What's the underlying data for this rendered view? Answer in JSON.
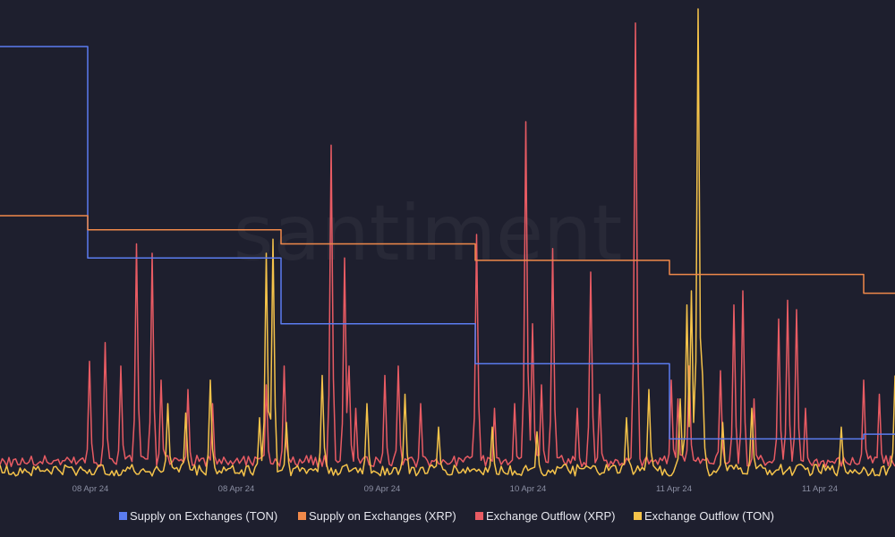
{
  "chart_data": {
    "type": "line",
    "watermark": "santiment",
    "x_ticks": [
      "08 Apr 24",
      "08 Apr 24",
      "09 Apr 24",
      "10 Apr 24",
      "11 Apr 24",
      "11 Apr 24"
    ],
    "series": [
      {
        "name": "Supply on Exchanges (TON)",
        "color": "#5b7cf0",
        "style": "step",
        "x": [
          0,
          0.098,
          0.314,
          0.531,
          0.748,
          0.965,
          1.0
        ],
        "values": [
          92,
          47,
          33,
          24.5,
          8.5,
          9.5,
          9.5
        ]
      },
      {
        "name": "Supply on Exchanges (XRP)",
        "color": "#f0894a",
        "style": "step",
        "x": [
          0,
          0.098,
          0.314,
          0.531,
          0.748,
          0.965,
          1.0
        ],
        "values": [
          56,
          53,
          50,
          46.5,
          43.5,
          39.5,
          39.5
        ]
      },
      {
        "name": "Exchange Outflow (XRP)",
        "color": "#e85b63",
        "style": "spiky",
        "baseline": 2.5,
        "noise": 2.5,
        "spikes": [
          [
            0.099,
            25
          ],
          [
            0.117,
            29
          ],
          [
            0.135,
            24
          ],
          [
            0.153,
            50
          ],
          [
            0.171,
            48
          ],
          [
            0.18,
            21
          ],
          [
            0.209,
            19
          ],
          [
            0.238,
            16
          ],
          [
            0.298,
            20
          ],
          [
            0.318,
            24
          ],
          [
            0.37,
            71
          ],
          [
            0.384,
            47
          ],
          [
            0.39,
            24
          ],
          [
            0.397,
            15
          ],
          [
            0.43,
            22
          ],
          [
            0.446,
            24
          ],
          [
            0.47,
            16
          ],
          [
            0.532,
            52
          ],
          [
            0.552,
            15
          ],
          [
            0.575,
            16
          ],
          [
            0.588,
            76
          ],
          [
            0.596,
            33
          ],
          [
            0.605,
            20
          ],
          [
            0.618,
            49
          ],
          [
            0.646,
            15
          ],
          [
            0.659,
            44
          ],
          [
            0.671,
            18
          ],
          [
            0.711,
            97
          ],
          [
            0.75,
            21
          ],
          [
            0.758,
            17
          ],
          [
            0.77,
            24
          ],
          [
            0.804,
            23
          ],
          [
            0.82,
            37
          ],
          [
            0.83,
            40
          ],
          [
            0.843,
            17
          ],
          [
            0.87,
            34
          ],
          [
            0.88,
            38
          ],
          [
            0.89,
            36
          ],
          [
            0.9,
            15
          ],
          [
            0.965,
            21
          ],
          [
            0.982,
            18
          ]
        ]
      },
      {
        "name": "Exchange Outflow (TON)",
        "color": "#f5c34a",
        "style": "spiky",
        "baseline": 0.6,
        "noise": 2.5,
        "spikes": [
          [
            0.187,
            16
          ],
          [
            0.208,
            14
          ],
          [
            0.236,
            21
          ],
          [
            0.291,
            13
          ],
          [
            0.298,
            48
          ],
          [
            0.304,
            51
          ],
          [
            0.319,
            12
          ],
          [
            0.36,
            22
          ],
          [
            0.41,
            16
          ],
          [
            0.452,
            18
          ],
          [
            0.49,
            11
          ],
          [
            0.55,
            11
          ],
          [
            0.6,
            10
          ],
          [
            0.7,
            13
          ],
          [
            0.726,
            19
          ],
          [
            0.761,
            17
          ],
          [
            0.767,
            37
          ],
          [
            0.772,
            40
          ],
          [
            0.779,
            100
          ],
          [
            0.786,
            22
          ],
          [
            0.808,
            12
          ],
          [
            0.84,
            15
          ],
          [
            0.94,
            11
          ],
          [
            0.999,
            22
          ]
        ]
      }
    ],
    "ylim": [
      0,
      100
    ]
  }
}
